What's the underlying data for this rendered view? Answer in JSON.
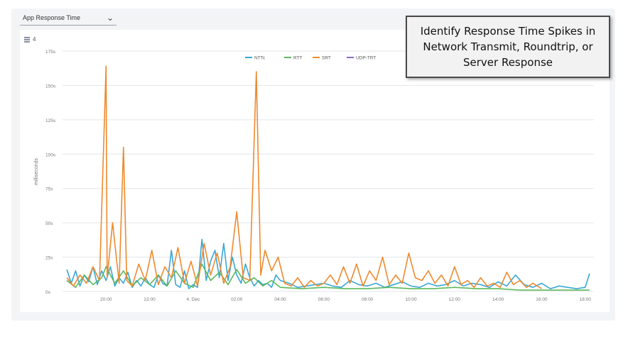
{
  "dropdown": {
    "selected": "App Response Time",
    "icon": "chevron-down-icon"
  },
  "toolbar": {
    "icon": "list-icon",
    "count": "4"
  },
  "callout": {
    "text": "Identify Response Time Spikes in Network Transmit, Roundtrip, or Server Response"
  },
  "chart_data": {
    "type": "line",
    "title": "",
    "xlabel": "",
    "ylabel": "milliseconds",
    "ylim": [
      0,
      175
    ],
    "yticks": [
      0,
      25,
      50,
      75,
      100,
      125,
      150,
      175
    ],
    "ytick_labels": [
      "0s",
      "25s",
      "50s",
      "75s",
      "100s",
      "125s",
      "150s",
      "175s"
    ],
    "xlim": [
      18.0,
      42.4
    ],
    "xticks": [
      20,
      22,
      24,
      26,
      28,
      30,
      32,
      34,
      36,
      38,
      40,
      42
    ],
    "xtick_labels": [
      "20:00",
      "22:00",
      "4. Dec",
      "02:00",
      "04:00",
      "06:00",
      "08:00",
      "10:00",
      "12:00",
      "14:00",
      "16:00",
      "18:00"
    ],
    "grid": true,
    "legend_position": "top-center",
    "colors": {
      "NTTc": "#3aa7d6",
      "RTT": "#5cb85c",
      "SRT": "#ee8a2e",
      "UDP-TRT": "#8e6bbf"
    },
    "series": [
      {
        "name": "NTTc",
        "x": [
          18.2,
          18.4,
          18.6,
          18.8,
          19.0,
          19.2,
          19.4,
          19.6,
          19.8,
          20.0,
          20.2,
          20.4,
          20.6,
          20.8,
          21.0,
          21.2,
          21.4,
          21.6,
          21.8,
          22.0,
          22.2,
          22.4,
          22.6,
          22.8,
          23.0,
          23.2,
          23.4,
          23.6,
          23.8,
          24.0,
          24.2,
          24.4,
          24.6,
          24.8,
          25.0,
          25.2,
          25.4,
          25.6,
          25.8,
          26.0,
          26.2,
          26.4,
          26.6,
          26.8,
          27.0,
          27.2,
          27.4,
          27.6,
          27.8,
          28.0,
          28.4,
          28.8,
          29.2,
          29.6,
          30.0,
          30.4,
          30.8,
          31.2,
          31.6,
          32.0,
          32.4,
          32.8,
          33.2,
          33.6,
          34.0,
          34.4,
          34.8,
          35.2,
          35.6,
          36.0,
          36.4,
          36.8,
          37.2,
          37.6,
          38.0,
          38.4,
          38.8,
          39.2,
          39.6,
          40.0,
          40.4,
          40.8,
          41.2,
          41.6,
          42.0,
          42.2
        ],
        "values": [
          16,
          6,
          15,
          4,
          12,
          7,
          18,
          5,
          15,
          8,
          18,
          4,
          10,
          6,
          14,
          3,
          8,
          4,
          10,
          5,
          3,
          12,
          6,
          4,
          30,
          5,
          3,
          15,
          2,
          5,
          3,
          38,
          8,
          22,
          30,
          10,
          35,
          8,
          25,
          12,
          6,
          20,
          10,
          4,
          8,
          5,
          6,
          3,
          12,
          8,
          6,
          3,
          4,
          5,
          6,
          4,
          3,
          8,
          5,
          4,
          6,
          3,
          5,
          7,
          4,
          3,
          6,
          4,
          5,
          8,
          4,
          6,
          5,
          3,
          7,
          4,
          12,
          5,
          3,
          6,
          2,
          4,
          3,
          2,
          3,
          13
        ]
      },
      {
        "name": "RTT",
        "x": [
          18.2,
          18.6,
          19.0,
          19.4,
          19.8,
          20.0,
          20.4,
          20.8,
          21.2,
          21.6,
          22.0,
          22.4,
          22.8,
          23.2,
          23.6,
          24.0,
          24.4,
          24.8,
          25.2,
          25.6,
          26.0,
          26.4,
          26.8,
          27.2,
          27.6,
          28.0,
          29.0,
          30.0,
          31.0,
          32.0,
          33.0,
          34.0,
          35.0,
          36.0,
          37.0,
          38.0,
          39.0,
          40.0,
          41.0,
          42.2
        ],
        "values": [
          8,
          3,
          12,
          5,
          10,
          18,
          6,
          15,
          4,
          10,
          5,
          12,
          4,
          15,
          6,
          3,
          20,
          8,
          14,
          5,
          16,
          6,
          10,
          4,
          8,
          3,
          2,
          3,
          2,
          2,
          3,
          2,
          2,
          3,
          2,
          2,
          1,
          1,
          1,
          1
        ]
      },
      {
        "name": "SRT",
        "x": [
          18.2,
          18.5,
          18.8,
          19.1,
          19.4,
          19.7,
          20.0,
          20.05,
          20.3,
          20.6,
          20.8,
          20.95,
          21.2,
          21.5,
          21.8,
          22.1,
          22.4,
          22.7,
          23.0,
          23.3,
          23.6,
          23.9,
          24.2,
          24.5,
          24.8,
          25.1,
          25.4,
          25.7,
          26.0,
          26.3,
          26.6,
          26.9,
          27.1,
          27.3,
          27.6,
          27.9,
          28.2,
          28.5,
          28.8,
          29.1,
          29.4,
          29.7,
          30.0,
          30.3,
          30.6,
          30.9,
          31.2,
          31.5,
          31.8,
          32.1,
          32.4,
          32.7,
          33.0,
          33.3,
          33.6,
          33.9,
          34.2,
          34.5,
          34.8,
          35.1,
          35.4,
          35.7,
          36.0,
          36.3,
          36.6,
          36.9,
          37.2,
          37.5,
          37.8,
          38.1,
          38.4,
          38.7,
          39.0,
          39.3,
          39.6,
          40.0
        ],
        "values": [
          10,
          4,
          12,
          6,
          18,
          8,
          164,
          10,
          50,
          6,
          105,
          8,
          4,
          20,
          8,
          30,
          5,
          18,
          10,
          32,
          6,
          22,
          4,
          35,
          12,
          28,
          6,
          18,
          58,
          10,
          8,
          160,
          12,
          30,
          15,
          25,
          6,
          4,
          10,
          3,
          8,
          4,
          6,
          12,
          5,
          18,
          6,
          20,
          4,
          15,
          8,
          25,
          5,
          12,
          6,
          28,
          10,
          8,
          15,
          6,
          12,
          4,
          18,
          5,
          8,
          3,
          10,
          4,
          6,
          3,
          14,
          5,
          8,
          3,
          6,
          2
        ]
      },
      {
        "name": "UDP-TRT",
        "x": [],
        "values": []
      }
    ]
  }
}
